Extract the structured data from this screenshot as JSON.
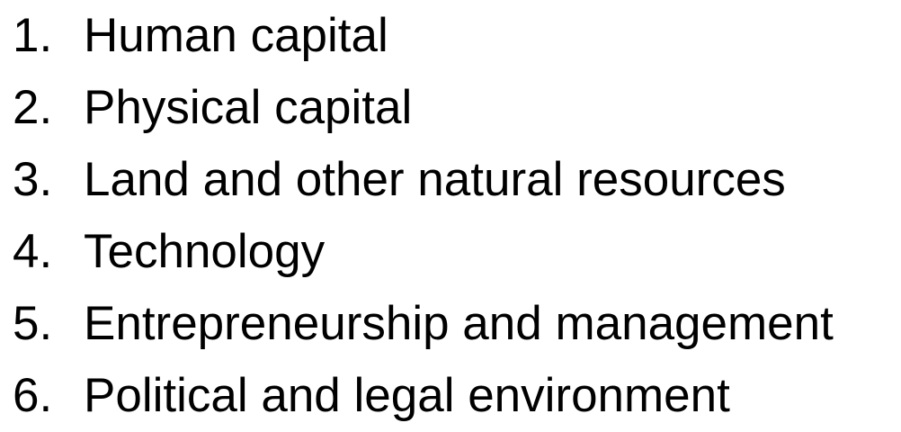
{
  "list": {
    "items": [
      {
        "number": "1.",
        "text": "Human capital"
      },
      {
        "number": "2.",
        "text": "Physical capital"
      },
      {
        "number": "3.",
        "text": "Land and other natural resources"
      },
      {
        "number": "4.",
        "text": "Technology"
      },
      {
        "number": "5.",
        "text": "Entrepreneurship and management"
      },
      {
        "number": "6.",
        "text": "Political and legal environment"
      }
    ]
  }
}
